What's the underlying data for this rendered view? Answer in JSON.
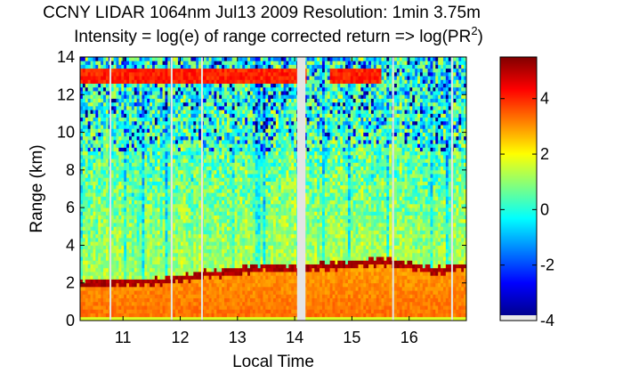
{
  "chart_data": {
    "type": "heatmap",
    "title_line1": "CCNY LIDAR 1064nm Jul13 2009 Resolution: 1min 3.75m",
    "title_line2_prefix": "Intensity = log(e) of range corrected return => log(PR",
    "title_line2_sup": "2",
    "title_line2_suffix": ")",
    "xlabel": "Local Time",
    "ylabel": "Range (km)",
    "xlim": [
      10.25,
      17.0
    ],
    "ylim": [
      0,
      14
    ],
    "x_ticks": [
      11,
      12,
      13,
      14,
      15,
      16
    ],
    "x_tick_labels": [
      "11",
      "12",
      "13",
      "14",
      "15",
      "16"
    ],
    "y_ticks": [
      0,
      2,
      4,
      6,
      8,
      10,
      12,
      14
    ],
    "y_tick_labels": [
      "0",
      "2",
      "4",
      "6",
      "8",
      "10",
      "12",
      "14"
    ],
    "colorbar": {
      "clim": [
        -4,
        5.5
      ],
      "ticks": [
        -4,
        -2,
        0,
        2,
        4
      ],
      "tick_labels": [
        "-4",
        "-2",
        "0",
        "2",
        "4"
      ],
      "colormap": "jet"
    },
    "features": {
      "boundary_layer_top_km": [
        [
          10.25,
          2.05
        ],
        [
          11.0,
          2.1
        ],
        [
          11.5,
          2.1
        ],
        [
          12.0,
          2.3
        ],
        [
          12.5,
          2.55
        ],
        [
          13.0,
          2.7
        ],
        [
          13.5,
          2.9
        ],
        [
          14.0,
          2.8
        ],
        [
          14.5,
          2.95
        ],
        [
          15.0,
          3.05
        ],
        [
          15.5,
          3.25
        ],
        [
          16.0,
          3.0
        ],
        [
          16.5,
          2.7
        ],
        [
          17.0,
          3.0
        ]
      ],
      "cirrus_layer_km": [
        12.6,
        13.4
      ],
      "cirrus_time_range": [
        10.25,
        15.5
      ],
      "data_gaps_hours": [
        10.78,
        11.85,
        12.38,
        14.08,
        14.15,
        15.72,
        16.75
      ]
    }
  }
}
